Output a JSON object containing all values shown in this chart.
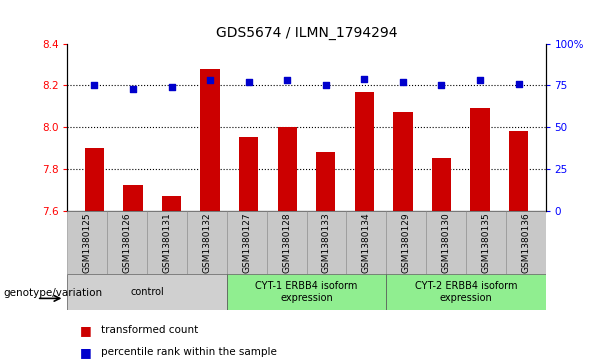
{
  "title": "GDS5674 / ILMN_1794294",
  "samples": [
    "GSM1380125",
    "GSM1380126",
    "GSM1380131",
    "GSM1380132",
    "GSM1380127",
    "GSM1380128",
    "GSM1380133",
    "GSM1380134",
    "GSM1380129",
    "GSM1380130",
    "GSM1380135",
    "GSM1380136"
  ],
  "red_values": [
    7.9,
    7.72,
    7.67,
    8.28,
    7.95,
    8.0,
    7.88,
    8.17,
    8.07,
    7.85,
    8.09,
    7.98
  ],
  "blue_values": [
    75,
    73,
    74,
    78,
    77,
    78,
    75,
    79,
    77,
    75,
    78,
    76
  ],
  "ylim_left": [
    7.6,
    8.4
  ],
  "ylim_right": [
    0,
    100
  ],
  "yticks_left": [
    7.6,
    7.8,
    8.0,
    8.2,
    8.4
  ],
  "yticks_right": [
    0,
    25,
    50,
    75,
    100
  ],
  "ytick_labels_right": [
    "0",
    "25",
    "50",
    "75",
    "100%"
  ],
  "group_labels": [
    "control",
    "CYT-1 ERBB4 isoform\nexpression",
    "CYT-2 ERBB4 isoform\nexpression"
  ],
  "group_ranges": [
    [
      0,
      4
    ],
    [
      4,
      8
    ],
    [
      8,
      12
    ]
  ],
  "group_colors": [
    "#d0d0d0",
    "#90ee90",
    "#90ee90"
  ],
  "bar_color": "#cc0000",
  "dot_color": "#0000cc",
  "bar_width": 0.5,
  "dotted_lines": [
    7.8,
    8.0,
    8.2
  ],
  "legend_red": "transformed count",
  "legend_blue": "percentile rank within the sample",
  "genotype_label": "genotype/variation",
  "sample_bg_color": "#c8c8c8",
  "title_fontsize": 10
}
